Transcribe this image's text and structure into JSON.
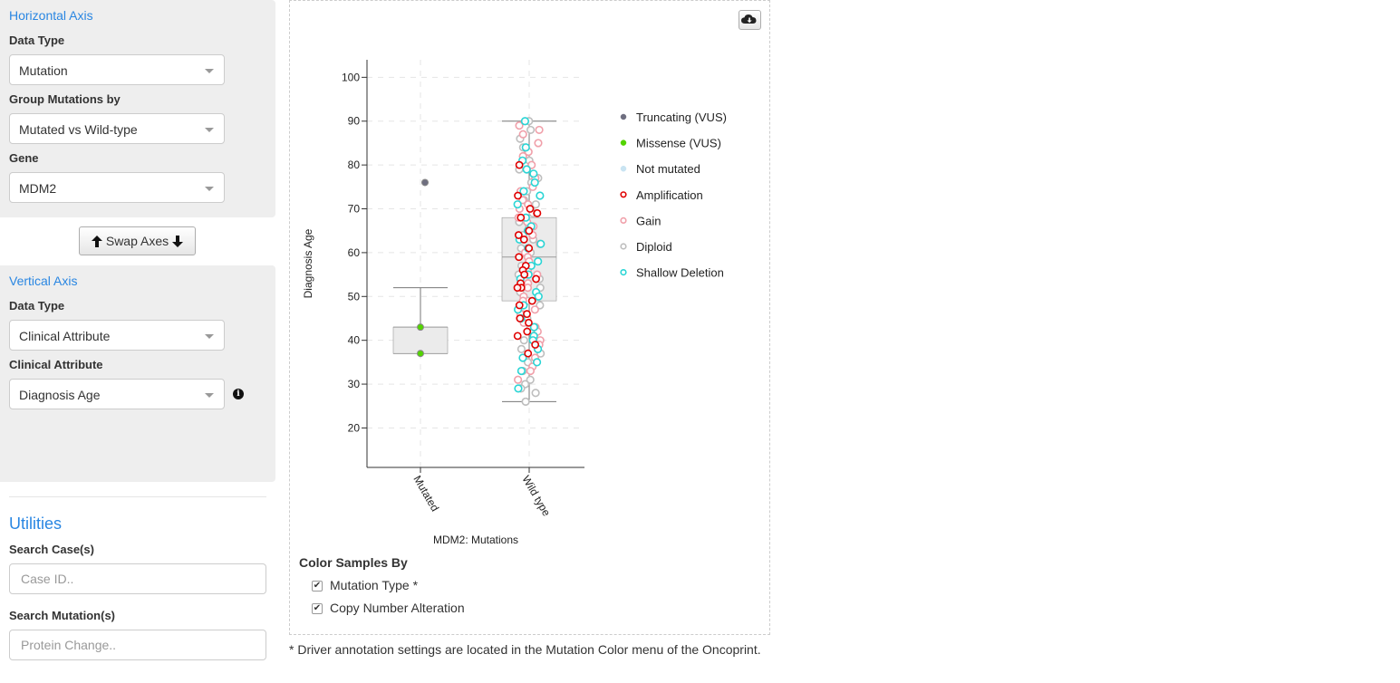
{
  "horizontal": {
    "title": "Horizontal Axis",
    "data_type_label": "Data Type",
    "data_type_value": "Mutation",
    "group_label": "Group Mutations by",
    "group_value": "Mutated vs Wild-type",
    "gene_label": "Gene",
    "gene_value": "MDM2"
  },
  "swap_label": "Swap Axes",
  "vertical": {
    "title": "Vertical Axis",
    "data_type_label": "Data Type",
    "data_type_value": "Clinical Attribute",
    "clinical_label": "Clinical Attribute",
    "clinical_value": "Diagnosis Age"
  },
  "utilities": {
    "title": "Utilities",
    "search_cases_label": "Search Case(s)",
    "search_cases_placeholder": "Case ID..",
    "search_mutations_label": "Search Mutation(s)",
    "search_mutations_placeholder": "Protein Change.."
  },
  "color_by": {
    "title": "Color Samples By",
    "options": [
      {
        "label": "Mutation Type *",
        "checked": true
      },
      {
        "label": "Copy Number Alteration",
        "checked": true
      }
    ]
  },
  "footnote": "* Driver annotation settings are located in the Mutation Color menu of the Oncoprint.",
  "icons": {
    "download": "cloud-download-icon",
    "info": "info-circle-icon",
    "swap_up": "arrow-up-icon",
    "swap_down": "arrow-down-icon"
  },
  "chart_data": {
    "type": "box",
    "xlabel": "MDM2: Mutations",
    "ylabel": "Diagnosis Age",
    "categories": [
      "Mutated",
      "Wild type"
    ],
    "ylim": [
      11,
      104
    ],
    "yticks": [
      20,
      30,
      40,
      50,
      60,
      70,
      80,
      90,
      100
    ],
    "grid": true,
    "legend_position": "right",
    "legend": [
      {
        "label": "Truncating (VUS)",
        "fill": "#6e6e80",
        "stroke": "#6e6e80",
        "filled": true
      },
      {
        "label": "Missense (VUS)",
        "fill": "#53d400",
        "stroke": "#53d400",
        "filled": true
      },
      {
        "label": "Not mutated",
        "fill": "#c9e4f2",
        "stroke": "#c9e4f2",
        "filled": true
      },
      {
        "label": "Amplification",
        "fill": "#ffffff",
        "stroke": "#e00000",
        "filled": false
      },
      {
        "label": "Gain",
        "fill": "#ffffff",
        "stroke": "#f0a0aa",
        "filled": false
      },
      {
        "label": "Diploid",
        "fill": "#ffffff",
        "stroke": "#bebebe",
        "filled": false
      },
      {
        "label": "Shallow Deletion",
        "fill": "#ffffff",
        "stroke": "#2ad5d5",
        "filled": false
      }
    ],
    "boxes": [
      {
        "category": "Mutated",
        "min": 37,
        "q1": 37,
        "median": 43,
        "q3": 43,
        "max": 52
      },
      {
        "category": "Wild type",
        "min": 26,
        "q1": 49,
        "median": 59,
        "q3": 68,
        "max": 90
      }
    ],
    "points": {
      "Mutated": [
        {
          "y": 76,
          "mut": "Truncating (VUS)"
        },
        {
          "y": 43,
          "mut": "Missense (VUS)"
        },
        {
          "y": 37,
          "mut": "Missense (VUS)"
        }
      ],
      "Wild type": {
        "amplification_ages": [
          80,
          73,
          70,
          69,
          69,
          68,
          65,
          64,
          63,
          61,
          59,
          57,
          56,
          55,
          54,
          53,
          52,
          52,
          49,
          48,
          46,
          45,
          44,
          42,
          41,
          39,
          37
        ],
        "shallow_deletion_ages": [
          90,
          84,
          81,
          79,
          78,
          76,
          74,
          73,
          71,
          68,
          66,
          65,
          63,
          62,
          61,
          58,
          57,
          55,
          54,
          51,
          50,
          48,
          47,
          45,
          43,
          41,
          40,
          38,
          36,
          35,
          33,
          29
        ],
        "gain_ages": [
          89,
          88,
          87,
          85,
          83,
          82,
          80,
          79,
          77,
          75,
          74,
          72,
          71,
          70,
          68,
          67,
          66,
          64,
          62,
          60,
          59,
          58,
          56,
          55,
          53,
          52,
          50,
          49,
          47,
          46,
          44,
          43,
          42,
          40,
          39,
          38,
          36,
          34,
          33,
          31
        ],
        "diploid_ages": [
          90,
          88,
          86,
          84,
          83,
          81,
          79,
          77,
          76,
          74,
          72,
          71,
          69,
          67,
          66,
          64,
          63,
          61,
          60,
          58,
          57,
          55,
          54,
          52,
          51,
          49,
          48,
          46,
          45,
          43,
          42,
          40,
          38,
          37,
          35,
          33,
          31,
          30,
          29,
          28,
          26,
          26
        ]
      }
    }
  }
}
